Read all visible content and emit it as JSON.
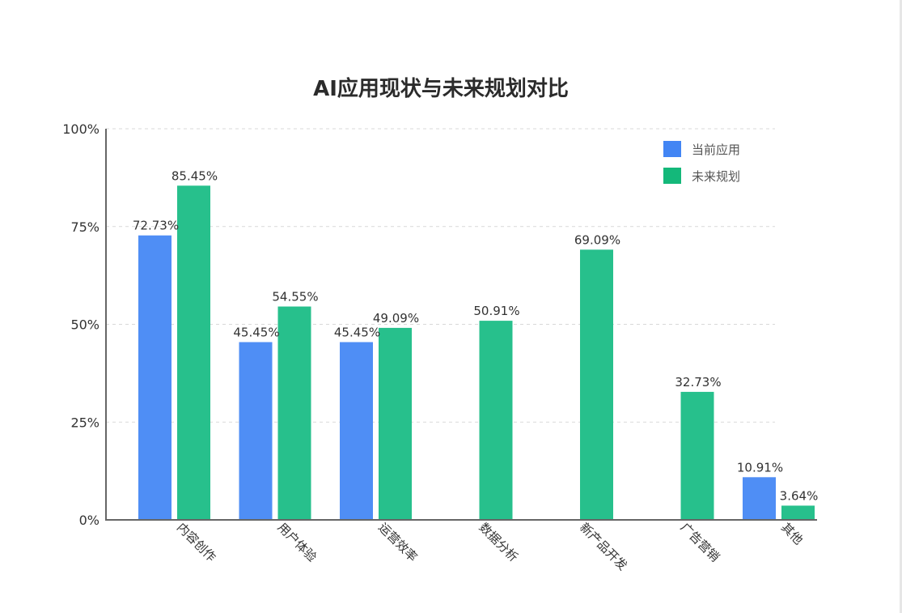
{
  "chart_data": {
    "type": "bar",
    "title": "AI应用现状与未来规划对比",
    "categories": [
      "内容创作",
      "用户体验",
      "运营效率",
      "数据分析",
      "新产品开发",
      "广告营销",
      "其他"
    ],
    "series": [
      {
        "name": "当前应用",
        "color": "#4f8ef5",
        "values": [
          72.73,
          45.45,
          45.45,
          0,
          0,
          0,
          10.91
        ],
        "labels": [
          "72.73%",
          "45.45%",
          "45.45%",
          "",
          "",
          "",
          "10.91%"
        ]
      },
      {
        "name": "未来规划",
        "color": "#27c08c",
        "values": [
          85.45,
          54.55,
          49.09,
          50.91,
          69.09,
          32.73,
          3.64
        ],
        "labels": [
          "85.45%",
          "54.55%",
          "49.09%",
          "50.91%",
          "69.09%",
          "32.73%",
          "3.64%"
        ]
      }
    ],
    "ylim": [
      0,
      100
    ],
    "yticks": [
      0,
      25,
      50,
      75,
      100
    ],
    "ytick_labels": [
      "0%",
      "25%",
      "50%",
      "75%",
      "100%"
    ],
    "grid": true,
    "legend_position": "top-right",
    "legend_colors": [
      "#4285f4",
      "#14b87a"
    ]
  }
}
